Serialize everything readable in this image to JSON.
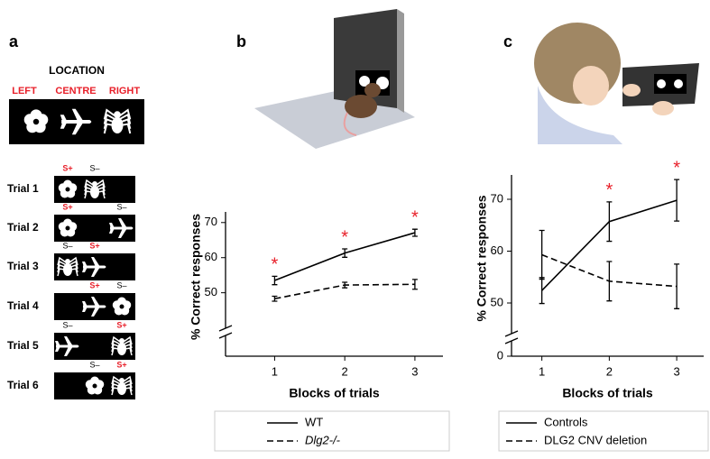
{
  "panel_labels": [
    "a",
    "b",
    "c"
  ],
  "panel_a": {
    "title": "LOCATION",
    "locations": [
      "LEFT",
      "CENTRE",
      "RIGHT"
    ],
    "trials": [
      {
        "label": "Trial 1",
        "s_plus": "S+",
        "s_minus": "S–"
      },
      {
        "label": "Trial 2",
        "s_plus": "S+",
        "s_minus": "S–"
      },
      {
        "label": "Trial 3",
        "s_plus": "S+",
        "s_minus": "S–"
      },
      {
        "label": "Trial 4",
        "s_plus": "S+",
        "s_minus": "S–"
      },
      {
        "label": "Trial 5",
        "s_plus": "S+",
        "s_minus": "S–"
      },
      {
        "label": "Trial 6",
        "s_plus": "S+",
        "s_minus": "S–"
      }
    ]
  },
  "chart_data": [
    {
      "type": "line",
      "x_label": "Blocks of trials",
      "y_label": "% Correct responses",
      "x": [
        1,
        2,
        3
      ],
      "xlim": [
        0.3,
        3.4
      ],
      "xticks": [
        1,
        2,
        3
      ],
      "ylim": [
        44,
        72
      ],
      "yticks": [
        50,
        60,
        70
      ],
      "axis_break": true,
      "series": [
        {
          "name": "WT",
          "color": "#000000",
          "dashed": false,
          "values": [
            53.5,
            61.3,
            67.1
          ],
          "errors": [
            1.2,
            1.2,
            1.0
          ]
        },
        {
          "name": "Dlg2-/-",
          "color": "#000000",
          "dashed": true,
          "values": [
            48.3,
            52.2,
            52.4
          ],
          "errors": [
            0.7,
            0.8,
            1.4
          ]
        }
      ],
      "annotations": [
        {
          "x": 1,
          "label": "*"
        },
        {
          "x": 2,
          "label": "*"
        },
        {
          "x": 3,
          "label": "*"
        }
      ],
      "annotation_color": "#e8202a"
    },
    {
      "type": "line",
      "x_label": "Blocks of trials",
      "y_label": "% Correct responses",
      "x": [
        1,
        2,
        3
      ],
      "xlim": [
        0.55,
        3.4
      ],
      "xticks": [
        1,
        2,
        3
      ],
      "ylim": [
        46,
        74
      ],
      "yticks": [
        50,
        60,
        70
      ],
      "axis_break": true,
      "break_ticks": [
        0
      ],
      "series": [
        {
          "name": "Controls",
          "color": "#000000",
          "dashed": false,
          "values": [
            52.4,
            65.7,
            69.8
          ],
          "errors": [
            2.5,
            3.8,
            4.0
          ]
        },
        {
          "name": "DLG2 CNV deletion",
          "color": "#000000",
          "dashed": true,
          "values": [
            59.3,
            54.2,
            53.2
          ],
          "errors": [
            4.7,
            3.8,
            4.3
          ]
        }
      ],
      "annotations": [
        {
          "x": 2,
          "label": "*"
        },
        {
          "x": 3,
          "label": "*"
        }
      ],
      "annotation_color": "#e8202a"
    }
  ]
}
